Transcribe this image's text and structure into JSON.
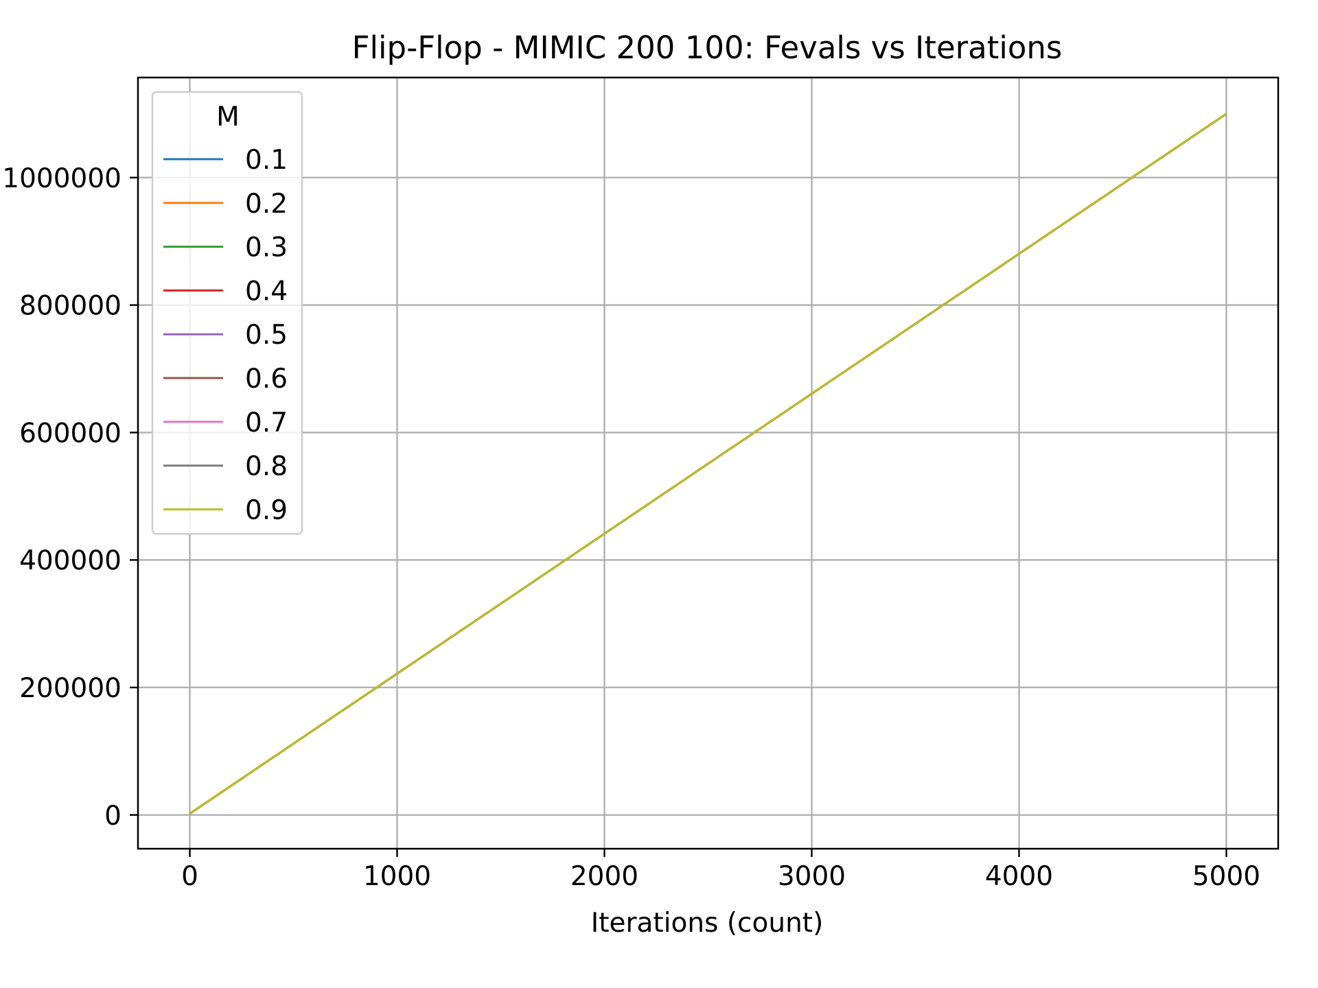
{
  "chart_data": {
    "type": "line",
    "title": "Flip-Flop - MIMIC 200 100: Fevals vs Iterations",
    "xlabel": "Iterations (count)",
    "ylabel": "",
    "xlim": [
      -250,
      5250
    ],
    "ylim": [
      -53000,
      1157000
    ],
    "x_ticks": [
      0,
      1000,
      2000,
      3000,
      4000,
      5000
    ],
    "x_tick_labels": [
      "0",
      "1000",
      "2000",
      "3000",
      "4000",
      "5000"
    ],
    "y_ticks": [
      0,
      200000,
      400000,
      600000,
      800000,
      1000000
    ],
    "y_tick_labels": [
      "0",
      "200000",
      "400000",
      "600000",
      "800000",
      "1000000"
    ],
    "grid": true,
    "legend": {
      "title": "M",
      "placement": "top-left"
    },
    "x": [
      0,
      5000
    ],
    "series": [
      {
        "name": "0.1",
        "color": "#1f77b4",
        "values": [
          2000,
          1100000
        ]
      },
      {
        "name": "0.2",
        "color": "#ff7f0e",
        "values": [
          2000,
          1100000
        ]
      },
      {
        "name": "0.3",
        "color": "#2ca02c",
        "values": [
          2000,
          1100000
        ]
      },
      {
        "name": "0.4",
        "color": "#d62728",
        "values": [
          2000,
          1100000
        ]
      },
      {
        "name": "0.5",
        "color": "#9467bd",
        "values": [
          2000,
          1100000
        ]
      },
      {
        "name": "0.6",
        "color": "#8c564b",
        "values": [
          2000,
          1100000
        ]
      },
      {
        "name": "0.7",
        "color": "#e377c2",
        "values": [
          2000,
          1100000
        ]
      },
      {
        "name": "0.8",
        "color": "#7f7f7f",
        "values": [
          2000,
          1100000
        ]
      },
      {
        "name": "0.9",
        "color": "#bcbd22",
        "values": [
          2000,
          1100000
        ]
      }
    ]
  }
}
